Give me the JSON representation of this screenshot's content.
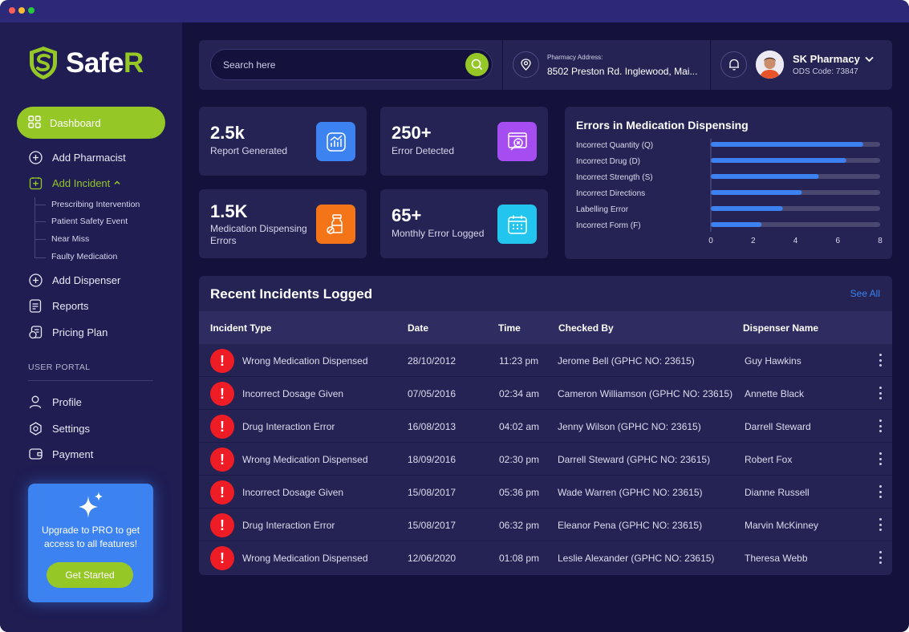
{
  "brand": {
    "name_prefix": "Safe",
    "name_suffix": "R"
  },
  "sidebar": {
    "dashboard_label": "Dashboard",
    "items": [
      {
        "label": "Add Pharmacist",
        "icon": "plus-circle-icon"
      },
      {
        "label": "Add Incident",
        "icon": "add-incident-icon"
      },
      {
        "label": "Add Dispenser",
        "icon": "plus-circle-icon"
      },
      {
        "label": "Reports",
        "icon": "reports-icon"
      },
      {
        "label": "Pricing Plan",
        "icon": "pricing-plan-icon"
      }
    ],
    "sub_items": [
      "Prescribing Intervention",
      "Patient Safety Event",
      "Near Miss",
      "Faulty Medication"
    ],
    "section_label": "USER PORTAL",
    "portal_items": [
      {
        "label": "Profile",
        "icon": "user-icon"
      },
      {
        "label": "Settings",
        "icon": "settings-icon"
      },
      {
        "label": "Payment",
        "icon": "wallet-icon"
      }
    ],
    "promo": {
      "text": "Upgrade to PRO to get access to all features!",
      "button_label": "Get Started"
    }
  },
  "header": {
    "search_placeholder": "Search here",
    "address_label": "Pharmacy Address:",
    "address_value": "8502 Preston Rd. Inglewood, Mai...",
    "pharmacy_name": "SK Pharmacy",
    "ods_code": "ODS Code: 73847"
  },
  "stats": [
    {
      "value": "2.5k",
      "label": "Report Generated",
      "icon": "chart-report-icon",
      "color": "#3c82f0"
    },
    {
      "value": "250+",
      "label": "Error Detected",
      "icon": "error-search-icon",
      "color": "#a54df0"
    },
    {
      "value": "1.5K",
      "label": "Medication Dispensing Errors",
      "icon": "medication-bottle-icon",
      "color": "#f47418"
    },
    {
      "value": "65+",
      "label": "Monthly Error Logged",
      "icon": "calendar-icon",
      "color": "#22c5ee"
    }
  ],
  "chart_data": {
    "type": "bar",
    "orientation": "horizontal",
    "title": "Errors in Medication Dispensing",
    "categories": [
      "Incorrect Quantity (Q)",
      "Incorrect Drug (D)",
      "Incorrect Strength (S)",
      "Incorrect Directions",
      "Labelling Error",
      "Incorrect Form (F)"
    ],
    "values": [
      7.2,
      6.4,
      5.1,
      4.3,
      3.4,
      2.4
    ],
    "xlim": [
      0,
      8
    ],
    "xticks": [
      "0",
      "2",
      "4",
      "6",
      "8"
    ],
    "bar_color": "#3c82f0",
    "track_color": "#4a4870"
  },
  "incidents": {
    "title": "Recent Incidents Logged",
    "see_all_label": "See All",
    "columns": [
      "Incident Type",
      "Date",
      "Time",
      "Checked By",
      "Dispenser Name"
    ],
    "rows": [
      {
        "type": "Wrong Medication Dispensed",
        "date": "28/10/2012",
        "time": "11:23 pm",
        "checked_by": "Jerome Bell (GPHC NO: 23615)",
        "dispenser": "Guy Hawkins"
      },
      {
        "type": "Incorrect Dosage Given",
        "date": "07/05/2016",
        "time": "02:34 am",
        "checked_by": "Cameron Williamson (GPHC NO: 23615)",
        "dispenser": "Annette Black"
      },
      {
        "type": "Drug Interaction Error",
        "date": "16/08/2013",
        "time": "04:02 am",
        "checked_by": "Jenny Wilson (GPHC NO: 23615)",
        "dispenser": "Darrell Steward"
      },
      {
        "type": "Wrong Medication Dispensed",
        "date": "18/09/2016",
        "time": "02:30 pm",
        "checked_by": "Darrell Steward (GPHC NO: 23615)",
        "dispenser": "Robert Fox"
      },
      {
        "type": "Incorrect Dosage Given",
        "date": "15/08/2017",
        "time": "05:36 pm",
        "checked_by": "Wade Warren (GPHC NO: 23615)",
        "dispenser": "Dianne Russell"
      },
      {
        "type": "Drug Interaction Error",
        "date": "15/08/2017",
        "time": "06:32 pm",
        "checked_by": "Eleanor Pena (GPHC NO: 23615)",
        "dispenser": "Marvin McKinney"
      },
      {
        "type": "Wrong Medication Dispensed",
        "date": "12/06/2020",
        "time": "01:08 pm",
        "checked_by": "Leslie Alexander (GPHC NO: 23615)",
        "dispenser": "Theresa Webb"
      }
    ]
  }
}
